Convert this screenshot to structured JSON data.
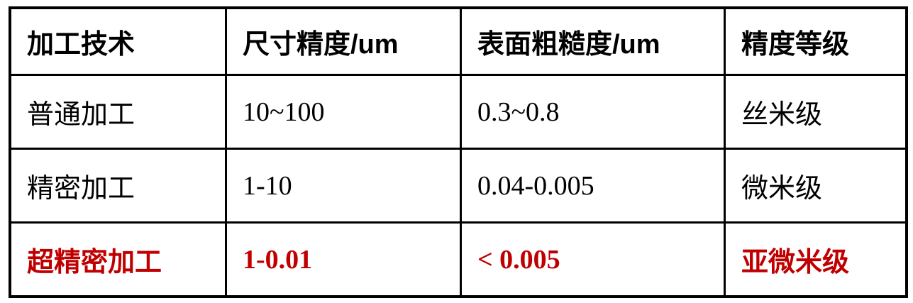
{
  "table": {
    "accent_color": "#c00000",
    "text_color": "#000000",
    "border_color": "#000000",
    "headers": [
      {
        "label": "加工技术"
      },
      {
        "label": "尺寸精度/um"
      },
      {
        "label": "表面粗糙度/um"
      },
      {
        "label": "精度等级"
      }
    ],
    "rows": [
      {
        "technology": "普通加工",
        "dimensional_accuracy": "10~100",
        "surface_roughness": "0.3~0.8",
        "precision_grade": "丝米级",
        "highlight": false
      },
      {
        "technology": "精密加工",
        "dimensional_accuracy": "1-10",
        "surface_roughness": "0.04-0.005",
        "precision_grade": "微米级",
        "highlight": false
      },
      {
        "technology": "超精密加工",
        "dimensional_accuracy": "1-0.01",
        "surface_roughness": "< 0.005",
        "precision_grade": "亚微米级",
        "highlight": true
      }
    ]
  }
}
